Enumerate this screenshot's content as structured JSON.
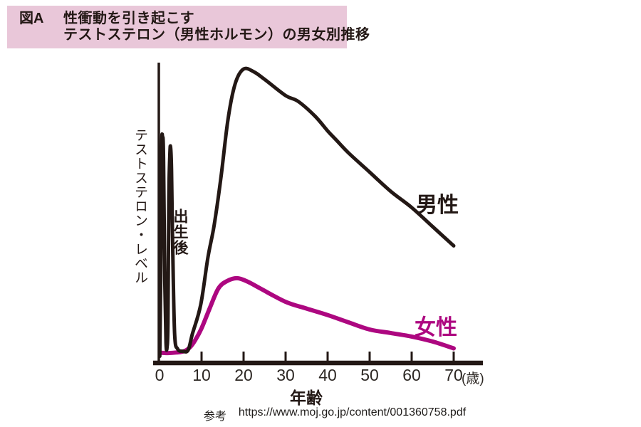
{
  "title": {
    "figure_label": "図A",
    "line1": "性衝動を引き起こす",
    "line2": "テストステロン（男性ホルモン）の男女別推移"
  },
  "source": {
    "prefix": "参考",
    "url": "https://www.moj.go.jp/content/001360758.pdf"
  },
  "colors": {
    "title_bg": "#e9c7d9",
    "male": "#231815",
    "female": "#ad0780",
    "axis": "#231815"
  },
  "chart_data": {
    "type": "line",
    "title": "テストステロン（男性ホルモン）の男女別推移",
    "ylabel": "テストステロン・レベル",
    "xlabel": "年齢",
    "x_unit_display": "(歳)",
    "x_tick_labels": [
      "0",
      "10",
      "20",
      "30",
      "40",
      "50",
      "60",
      "70"
    ],
    "xlim": [
      0,
      77
    ],
    "grid": false,
    "legend_position": "inline-right-of-curves",
    "y_scale_note": "相対レベル（目盛りなし、男性ピーク=100）",
    "annotations": [
      {
        "text": "出生後",
        "x": 2.6,
        "meaning": "birth-time spike on male curve"
      }
    ],
    "series": [
      {
        "name": "男性",
        "color": "#231815",
        "points": [
          [
            0.05,
            2.5
          ],
          [
            0.25,
            25
          ],
          [
            0.5,
            72
          ],
          [
            0.72,
            77
          ],
          [
            0.95,
            70
          ],
          [
            1.25,
            28
          ],
          [
            1.55,
            7
          ],
          [
            1.8,
            5.8
          ],
          [
            2.0,
            14
          ],
          [
            2.2,
            55
          ],
          [
            2.45,
            71
          ],
          [
            2.62,
            73.5
          ],
          [
            2.85,
            66
          ],
          [
            3.15,
            38
          ],
          [
            3.6,
            10
          ],
          [
            4.3,
            5
          ],
          [
            5.5,
            4.2
          ],
          [
            6.8,
            4.6
          ],
          [
            7.8,
            10
          ],
          [
            9.8,
            20
          ],
          [
            11.5,
            36
          ],
          [
            13,
            47
          ],
          [
            14.6,
            63
          ],
          [
            16.3,
            83
          ],
          [
            18,
            95
          ],
          [
            20,
            100
          ],
          [
            22.5,
            99
          ],
          [
            25,
            96.5
          ],
          [
            30,
            91
          ],
          [
            33,
            89
          ],
          [
            37,
            84
          ],
          [
            40,
            79
          ],
          [
            42,
            76
          ],
          [
            45,
            71.5
          ],
          [
            50,
            65
          ],
          [
            55,
            58.5
          ],
          [
            60,
            53
          ],
          [
            65,
            46.5
          ],
          [
            70,
            40
          ]
        ]
      },
      {
        "name": "女性",
        "color": "#ad0780",
        "points": [
          [
            0.3,
            3.7
          ],
          [
            2,
            3.6
          ],
          [
            4,
            3.8
          ],
          [
            5.8,
            4.2
          ],
          [
            7.2,
            5.5
          ],
          [
            8.5,
            8
          ],
          [
            10,
            12
          ],
          [
            12,
            19
          ],
          [
            14,
            25.5
          ],
          [
            16,
            28
          ],
          [
            18.5,
            29
          ],
          [
            21,
            27.8
          ],
          [
            24,
            25.5
          ],
          [
            30,
            21
          ],
          [
            35,
            18.7
          ],
          [
            40,
            16.5
          ],
          [
            45,
            14
          ],
          [
            50,
            11.6
          ],
          [
            55,
            10.4
          ],
          [
            60,
            9.2
          ],
          [
            65,
            7.5
          ],
          [
            70,
            5.2
          ]
        ]
      }
    ]
  }
}
